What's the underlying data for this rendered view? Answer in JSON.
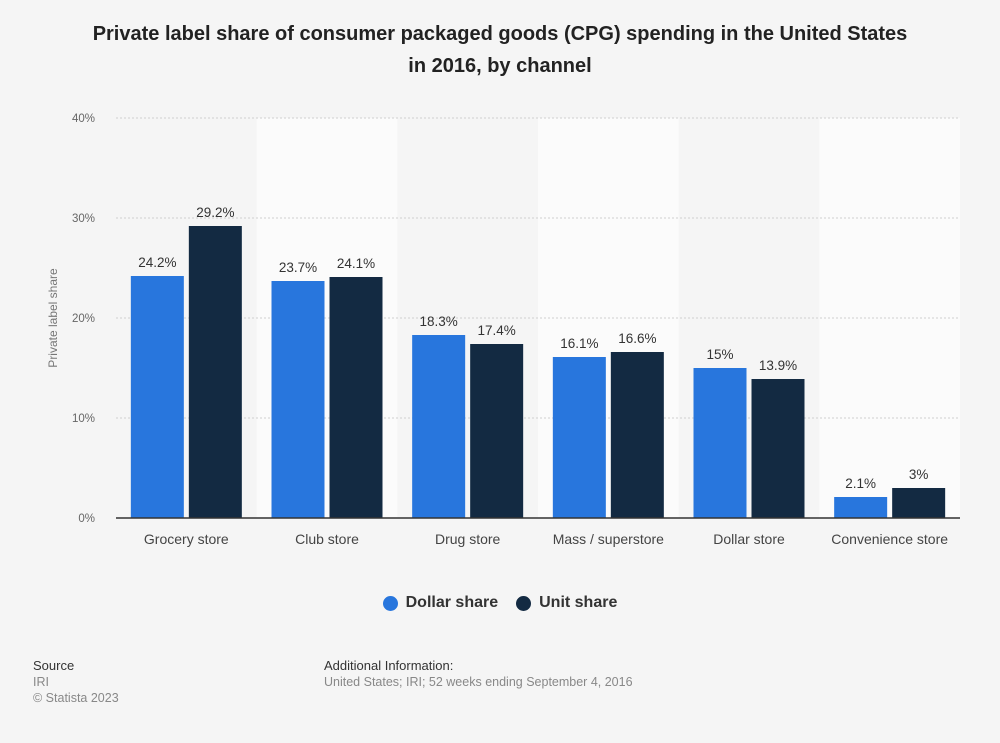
{
  "chart_data": {
    "type": "bar",
    "title_line1": "Private label share of consumer packaged goods (CPG) spending in the United States",
    "title_line2": "in 2016, by channel",
    "ylabel": "Private label share",
    "ylim": [
      0,
      40
    ],
    "yticks": [
      0,
      10,
      20,
      30,
      40
    ],
    "ytick_labels": [
      "0%",
      "10%",
      "20%",
      "30%",
      "40%"
    ],
    "categories": [
      "Grocery store",
      "Club store",
      "Drug store",
      "Mass / superstore",
      "Dollar store",
      "Convenience store"
    ],
    "series": [
      {
        "name": "Dollar share",
        "color": "#2876dd",
        "values": [
          24.2,
          23.7,
          18.3,
          16.1,
          15,
          2.1
        ],
        "labels": [
          "24.2%",
          "23.7%",
          "18.3%",
          "16.1%",
          "15%",
          "2.1%"
        ]
      },
      {
        "name": "Unit share",
        "color": "#132a42",
        "values": [
          29.2,
          24.1,
          17.4,
          16.6,
          13.9,
          3
        ],
        "labels": [
          "29.2%",
          "24.1%",
          "17.4%",
          "16.6%",
          "13.9%",
          "3%"
        ]
      }
    ],
    "grid": true,
    "legend_position": "bottom"
  },
  "footer": {
    "source_heading": "Source",
    "source_name": "IRI",
    "copyright": "© Statista 2023",
    "info_heading": "Additional Information:",
    "info_text": "United States; IRI; 52 weeks ending September 4, 2016"
  }
}
